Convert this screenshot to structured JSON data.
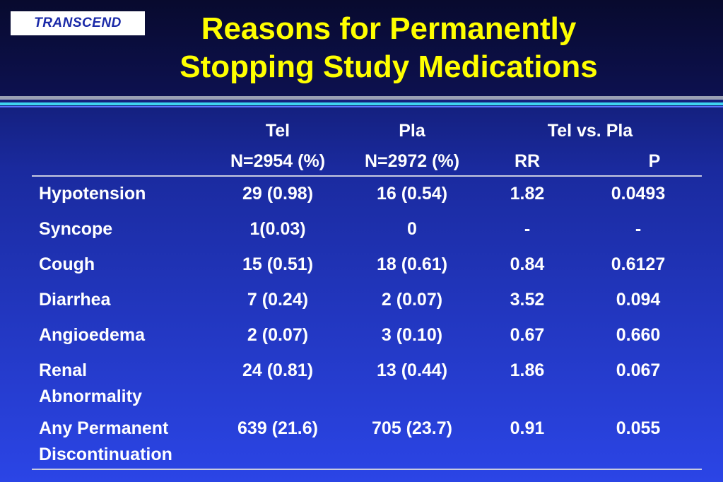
{
  "logo": {
    "text": "TRANSCEND"
  },
  "title": {
    "line1": "Reasons for Permanently",
    "line2": "Stopping Study Medications"
  },
  "table": {
    "header": {
      "tel": "Tel",
      "tel_n": "N=2954 (%)",
      "pla": "Pla",
      "pla_n": "N=2972 (%)",
      "group": "Tel vs. Pla",
      "rr": "RR",
      "p": "P"
    },
    "rows": [
      {
        "name": "Hypotension",
        "name2": "",
        "tel": "29 (0.98)",
        "pla": "16 (0.54)",
        "rr": "1.82",
        "p": "0.0493"
      },
      {
        "name": "Syncope",
        "name2": "",
        "tel": "1(0.03)",
        "pla": "0",
        "rr": "-",
        "p": "-"
      },
      {
        "name": "Cough",
        "name2": "",
        "tel": "15 (0.51)",
        "pla": "18 (0.61)",
        "rr": "0.84",
        "p": "0.6127"
      },
      {
        "name": "Diarrhea",
        "name2": "",
        "tel": "7 (0.24)",
        "pla": "2 (0.07)",
        "rr": "3.52",
        "p": "0.094"
      },
      {
        "name": "Angioedema",
        "name2": "",
        "tel": "2 (0.07)",
        "pla": "3 (0.10)",
        "rr": "0.67",
        "p": "0.660"
      },
      {
        "name": "Renal",
        "name2": "Abnormality",
        "tel": "24 (0.81)",
        "pla": "13 (0.44)",
        "rr": "1.86",
        "p": "0.067"
      },
      {
        "name": "Any Permanent",
        "name2": "Discontinuation",
        "tel": "639 (21.6)",
        "pla": "705 (23.7)",
        "rr": "0.91",
        "p": "0.055"
      }
    ]
  }
}
